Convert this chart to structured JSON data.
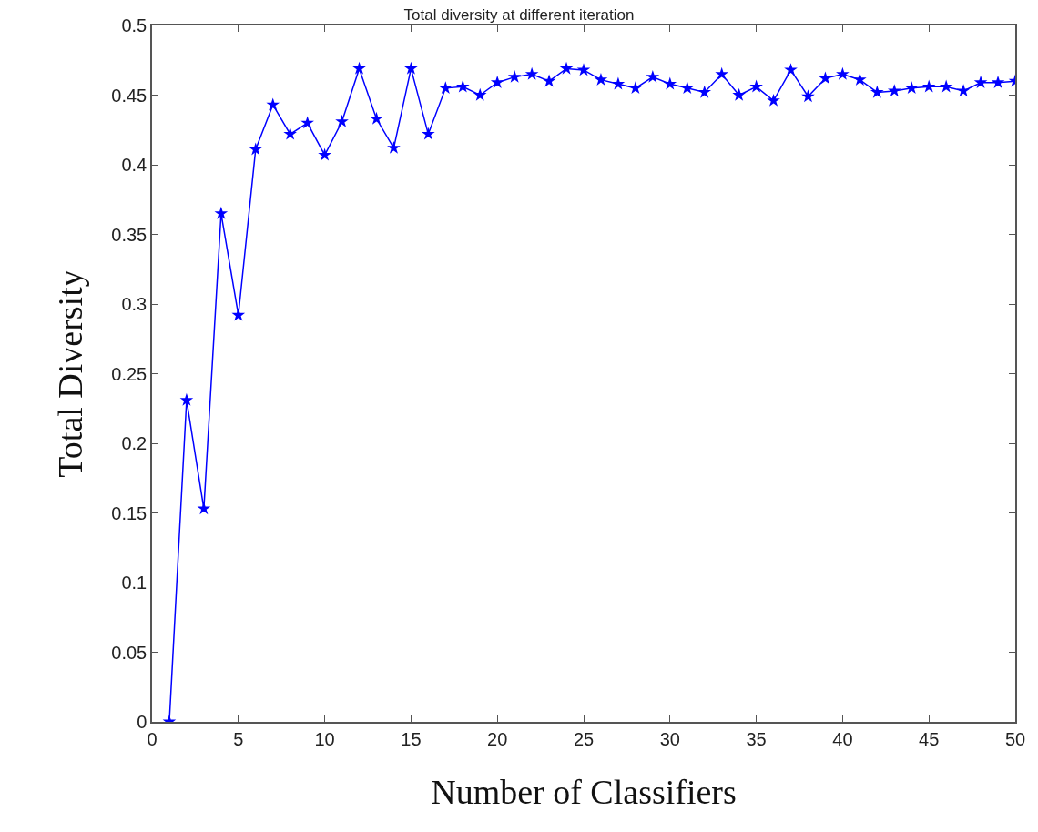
{
  "chart_data": {
    "type": "line",
    "title": "Total diversity at different iteration",
    "xlabel": "Number of Classifiers",
    "ylabel": "Total Diversity",
    "x": [
      1,
      2,
      3,
      4,
      5,
      6,
      7,
      8,
      9,
      10,
      11,
      12,
      13,
      14,
      15,
      16,
      17,
      18,
      19,
      20,
      21,
      22,
      23,
      24,
      25,
      26,
      27,
      28,
      29,
      30,
      31,
      32,
      33,
      34,
      35,
      36,
      37,
      38,
      39,
      40,
      41,
      42,
      43,
      44,
      45,
      46,
      47,
      48,
      49,
      50
    ],
    "series": [
      {
        "color": "#0000ff",
        "values": [
          0,
          0.231,
          0.153,
          0.365,
          0.292,
          0.411,
          0.443,
          0.422,
          0.43,
          0.407,
          0.431,
          0.469,
          0.433,
          0.412,
          0.469,
          0.422,
          0.455,
          0.456,
          0.45,
          0.459,
          0.463,
          0.465,
          0.46,
          0.469,
          0.468,
          0.461,
          0.458,
          0.455,
          0.463,
          0.458,
          0.455,
          0.452,
          0.465,
          0.45,
          0.456,
          0.446,
          0.468,
          0.449,
          0.462,
          0.465,
          0.461,
          0.452,
          0.453,
          0.455,
          0.456,
          0.456,
          0.453,
          0.459,
          0.459,
          0.46
        ]
      }
    ],
    "xlim": [
      0,
      50
    ],
    "xticks": [
      0,
      5,
      10,
      15,
      20,
      25,
      30,
      35,
      40,
      45,
      50
    ],
    "ylim": [
      0,
      0.5
    ],
    "yticks": [
      0,
      0.05,
      0.1,
      0.15,
      0.2,
      0.25,
      0.3,
      0.35,
      0.4,
      0.45,
      0.5
    ],
    "marker": "star",
    "line_style": "solid"
  }
}
